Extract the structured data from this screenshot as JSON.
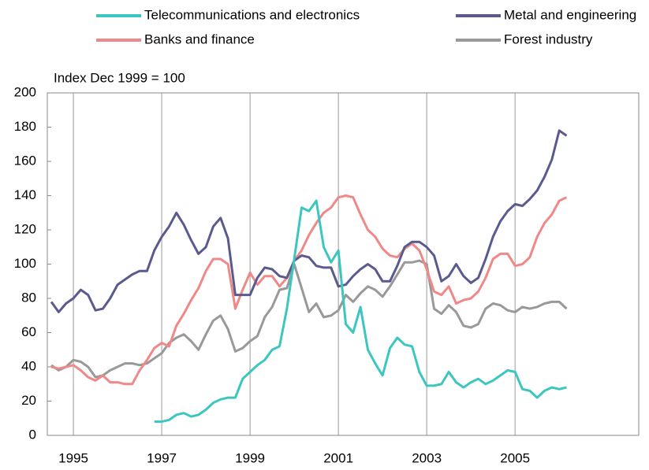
{
  "chart_data": {
    "type": "line",
    "y_label": "Index Dec 1999 = 100",
    "x": [
      1994.5,
      1994.667,
      1994.833,
      1995,
      1995.167,
      1995.333,
      1995.5,
      1995.667,
      1995.833,
      1996,
      1996.167,
      1996.333,
      1996.5,
      1996.667,
      1996.833,
      1997,
      1997.167,
      1997.333,
      1997.5,
      1997.667,
      1997.833,
      1998,
      1998.167,
      1998.333,
      1998.5,
      1998.667,
      1998.833,
      1999,
      1999.167,
      1999.333,
      1999.5,
      1999.667,
      1999.833,
      2000,
      2000.167,
      2000.333,
      2000.5,
      2000.667,
      2000.833,
      2001,
      2001.167,
      2001.333,
      2001.5,
      2001.667,
      2001.833,
      2002,
      2002.167,
      2002.333,
      2002.5,
      2002.667,
      2002.833,
      2003,
      2003.167,
      2003.333,
      2003.5,
      2003.667,
      2003.833,
      2004,
      2004.167,
      2004.333,
      2004.5,
      2004.667,
      2004.833,
      2005,
      2005.167,
      2005.333,
      2005.5,
      2005.667,
      2005.833,
      2006,
      2006.167
    ],
    "series": [
      {
        "name": "Telecommunications and electronics",
        "color": "#3cc6c0",
        "values": [
          null,
          null,
          null,
          null,
          null,
          null,
          null,
          null,
          null,
          null,
          null,
          null,
          null,
          null,
          8,
          8,
          9,
          12,
          13,
          11,
          12,
          15,
          19,
          21,
          22,
          22,
          33,
          37,
          41,
          44,
          50,
          52,
          74,
          103,
          133,
          131,
          137,
          110,
          101,
          108,
          65,
          60,
          75,
          50,
          42,
          35,
          51,
          57,
          53,
          52,
          37,
          29,
          29,
          30,
          37,
          31,
          28,
          31,
          33,
          30,
          32,
          35,
          38,
          37,
          27,
          26,
          22,
          26,
          28,
          27,
          28
        ]
      },
      {
        "name": "Metal and engineering",
        "color": "#5b5a8f",
        "values": [
          78,
          72,
          77,
          80,
          85,
          82,
          73,
          74,
          80,
          88,
          91,
          94,
          96,
          96,
          108,
          116,
          122,
          130,
          123,
          114,
          106,
          110,
          122,
          127,
          115,
          82,
          82,
          82,
          92,
          98,
          97,
          93,
          92,
          102,
          105,
          104,
          99,
          98,
          98,
          87,
          88,
          93,
          97,
          100,
          97,
          90,
          90,
          99,
          110,
          113,
          113,
          110,
          105,
          90,
          93,
          100,
          93,
          89,
          92,
          103,
          116,
          125,
          131,
          135,
          134,
          138,
          143,
          151,
          161,
          178,
          175
        ]
      },
      {
        "name": "Banks and finance",
        "color": "#f08888",
        "values": [
          40,
          39,
          40,
          41,
          38,
          34,
          32,
          35,
          31,
          31,
          30,
          30,
          38,
          44,
          51,
          54,
          52,
          64,
          71,
          79,
          86,
          96,
          103,
          103,
          100,
          74,
          85,
          95,
          88,
          93,
          93,
          87,
          92,
          102,
          108,
          117,
          124,
          130,
          133,
          139,
          140,
          139,
          129,
          120,
          116,
          109,
          105,
          104,
          109,
          112,
          108,
          97,
          84,
          82,
          87,
          77,
          79,
          80,
          84,
          92,
          103,
          106,
          106,
          99,
          100,
          104,
          116,
          124,
          129,
          137,
          139
        ]
      },
      {
        "name": "Forest industry",
        "color": "#999999",
        "values": [
          41,
          38,
          40,
          44,
          43,
          40,
          34,
          35,
          38,
          40,
          42,
          42,
          41,
          42,
          45,
          48,
          54,
          57,
          59,
          55,
          50,
          59,
          67,
          70,
          62,
          49,
          51,
          55,
          58,
          69,
          75,
          85,
          86,
          100,
          86,
          72,
          77,
          69,
          70,
          73,
          82,
          78,
          83,
          87,
          85,
          81,
          87,
          94,
          101,
          101,
          102,
          100,
          74,
          71,
          76,
          72,
          64,
          63,
          65,
          74,
          77,
          76,
          73,
          72,
          75,
          74,
          75,
          77,
          78,
          78,
          74
        ]
      }
    ],
    "xlim": [
      1994.41,
      2007.8
    ],
    "xticks": [
      1995,
      1997,
      1999,
      2001,
      2003,
      2005
    ],
    "ylim": [
      0,
      200
    ],
    "yticks": [
      0,
      20,
      40,
      60,
      80,
      100,
      120,
      140,
      160,
      180,
      200
    ],
    "grid": "x",
    "legend": "top"
  }
}
